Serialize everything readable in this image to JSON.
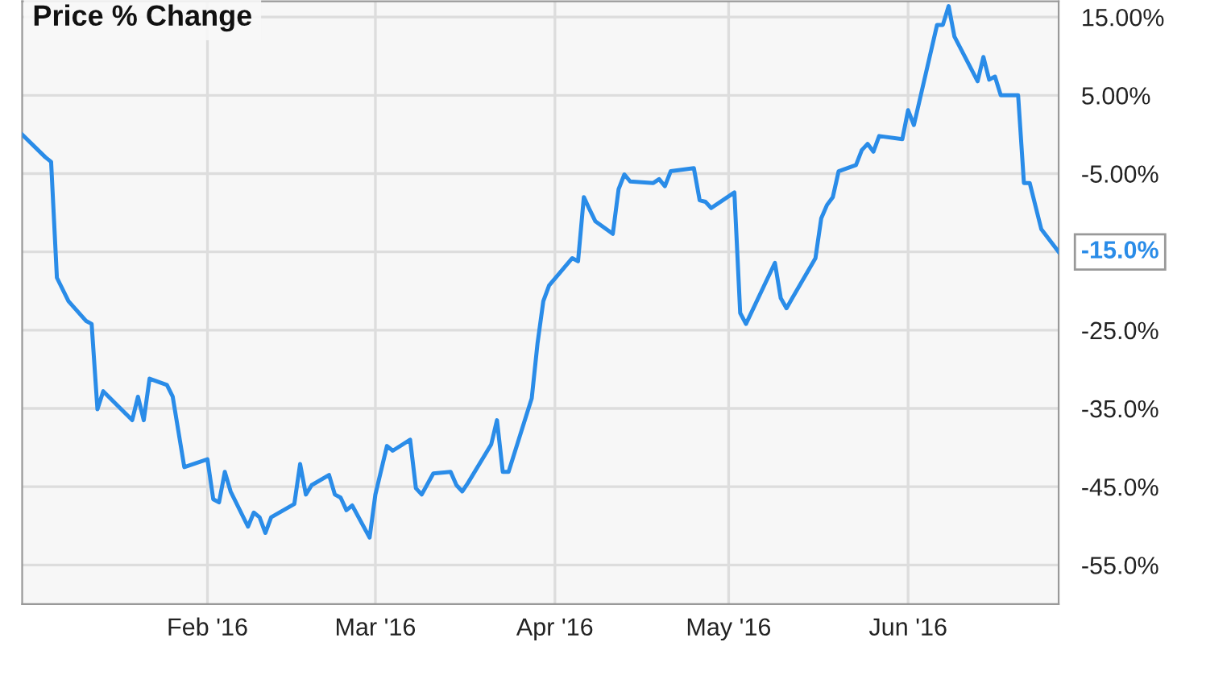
{
  "chart_data": {
    "type": "line",
    "title": "Price % Change",
    "x": [
      "2015-12-31",
      "2016-01-04",
      "2016-01-05",
      "2016-01-06",
      "2016-01-08",
      "2016-01-11",
      "2016-01-12",
      "2016-01-13",
      "2016-01-14",
      "2016-01-19",
      "2016-01-20",
      "2016-01-21",
      "2016-01-22",
      "2016-01-25",
      "2016-01-26",
      "2016-01-28",
      "2016-02-01",
      "2016-02-02",
      "2016-02-03",
      "2016-02-04",
      "2016-02-05",
      "2016-02-08",
      "2016-02-09",
      "2016-02-10",
      "2016-02-11",
      "2016-02-12",
      "2016-02-16",
      "2016-02-17",
      "2016-02-18",
      "2016-02-19",
      "2016-02-22",
      "2016-02-23",
      "2016-02-24",
      "2016-02-25",
      "2016-02-26",
      "2016-02-29",
      "2016-03-01",
      "2016-03-03",
      "2016-03-04",
      "2016-03-07",
      "2016-03-08",
      "2016-03-09",
      "2016-03-11",
      "2016-03-14",
      "2016-03-15",
      "2016-03-16",
      "2016-03-17",
      "2016-03-21",
      "2016-03-22",
      "2016-03-23",
      "2016-03-24",
      "2016-03-28",
      "2016-03-29",
      "2016-03-30",
      "2016-03-31",
      "2016-04-04",
      "2016-04-05",
      "2016-04-06",
      "2016-04-07",
      "2016-04-08",
      "2016-04-11",
      "2016-04-12",
      "2016-04-13",
      "2016-04-14",
      "2016-04-18",
      "2016-04-19",
      "2016-04-20",
      "2016-04-21",
      "2016-04-25",
      "2016-04-26",
      "2016-04-27",
      "2016-04-28",
      "2016-05-02",
      "2016-05-03",
      "2016-05-04",
      "2016-05-09",
      "2016-05-10",
      "2016-05-11",
      "2016-05-12",
      "2016-05-16",
      "2016-05-17",
      "2016-05-18",
      "2016-05-19",
      "2016-05-20",
      "2016-05-23",
      "2016-05-24",
      "2016-05-25",
      "2016-05-26",
      "2016-05-27",
      "2016-05-31",
      "2016-06-01",
      "2016-06-02",
      "2016-06-06",
      "2016-06-07",
      "2016-06-08",
      "2016-06-09",
      "2016-06-13",
      "2016-06-14",
      "2016-06-15",
      "2016-06-16",
      "2016-06-17",
      "2016-06-20",
      "2016-06-21",
      "2016-06-22",
      "2016-06-24",
      "2016-06-27"
    ],
    "series": [
      {
        "color": "#2a8ce8",
        "values": [
          0,
          -2.9,
          -3.5,
          -18.3,
          -21.3,
          -23.8,
          -24.2,
          -35.1,
          -32.8,
          -36.5,
          -33.5,
          -36.5,
          -31.2,
          -32.0,
          -33.5,
          -42.5,
          -41.5,
          -46.6,
          -47.0,
          -43.1,
          -45.6,
          -50.1,
          -48.3,
          -48.9,
          -50.9,
          -48.9,
          -47.2,
          -42.1,
          -46.0,
          -44.8,
          -43.5,
          -46.0,
          -46.4,
          -48.0,
          -47.4,
          -51.5,
          -46.0,
          -39.8,
          -40.4,
          -39.0,
          -45.2,
          -46.0,
          -43.3,
          -43.1,
          -44.8,
          -45.6,
          -44.5,
          -39.6,
          -36.5,
          -43.1,
          -43.1,
          -33.7,
          -26.7,
          -21.3,
          -19.3,
          -15.8,
          -16.2,
          -8.0,
          -9.6,
          -11.1,
          -12.7,
          -7.0,
          -5.1,
          -6.0,
          -6.2,
          -5.7,
          -6.6,
          -4.7,
          -4.3,
          -8.4,
          -8.6,
          -9.4,
          -7.4,
          -22.8,
          -24.2,
          -16.4,
          -20.9,
          -22.2,
          -20.9,
          -15.8,
          -10.7,
          -9.0,
          -8.0,
          -4.7,
          -3.9,
          -2.0,
          -1.2,
          -2.2,
          -0.2,
          -0.6,
          3.1,
          1.2,
          14.0,
          14.0,
          16.4,
          12.5,
          6.8,
          9.9,
          7.0,
          7.4,
          5.0,
          5.0,
          -6.2,
          -6.2,
          -12.1,
          -15.0
        ]
      }
    ],
    "xlim": [
      "2015-12-31",
      "2016-06-27"
    ],
    "xticks": [
      {
        "value": "2016-02-01",
        "label": "Feb '16"
      },
      {
        "value": "2016-03-01",
        "label": "Mar '16"
      },
      {
        "value": "2016-04-01",
        "label": "Apr '16"
      },
      {
        "value": "2016-05-01",
        "label": "May '16"
      },
      {
        "value": "2016-06-01",
        "label": "Jun '16"
      }
    ],
    "ylim": [
      -60,
      17
    ],
    "yticks": [
      {
        "value": 15,
        "label": "15.00%"
      },
      {
        "value": 5,
        "label": "5.00%"
      },
      {
        "value": -5,
        "label": "-5.00%"
      },
      {
        "value": -15,
        "label": null
      },
      {
        "value": -25,
        "label": "-25.0%"
      },
      {
        "value": -35,
        "label": "-35.0%"
      },
      {
        "value": -45,
        "label": "-45.0%"
      },
      {
        "value": -55,
        "label": "-55.0%"
      }
    ],
    "annotations": [
      {
        "text": "-15.0%",
        "x": "2016-06-27",
        "y": -15.0
      }
    ],
    "grid": true,
    "legend": false,
    "marker": "none",
    "line_style": "solid"
  }
}
